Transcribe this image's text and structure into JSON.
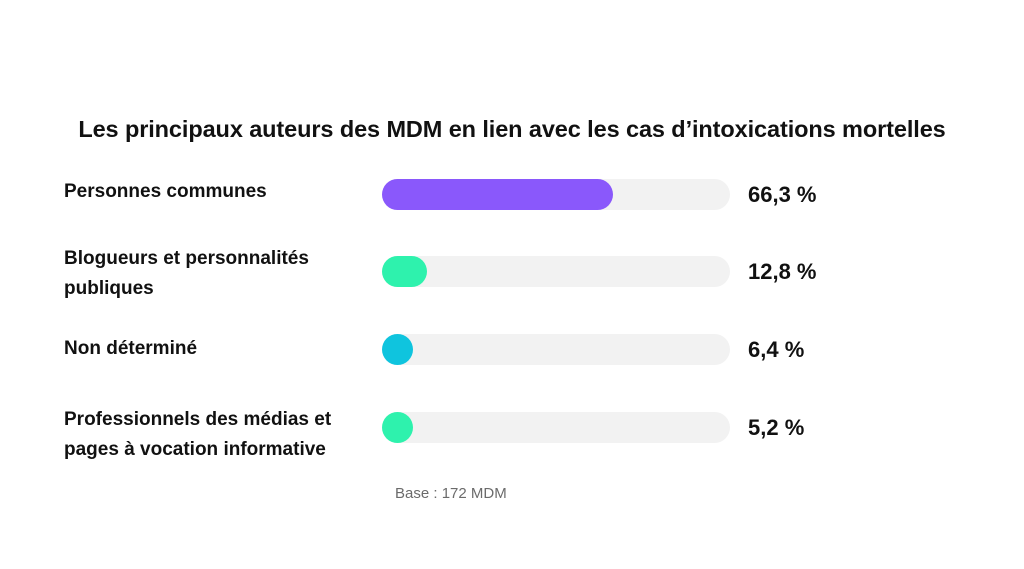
{
  "chart_data": {
    "type": "bar",
    "orientation": "horizontal",
    "title": "Les principaux auteurs des MDM en lien avec les cas d’intoxications mortelles",
    "xlim": [
      0,
      100
    ],
    "categories": [
      "Personnes communes",
      "Blogueurs et personnalités publiques",
      "Non déterminé",
      "Professionnels des médias et pages à vocation informative"
    ],
    "values": [
      66.3,
      12.8,
      6.4,
      5.2
    ],
    "value_labels": [
      "66,3 %",
      "12,8 %",
      "6,4 %",
      "5,2 %"
    ],
    "colors": [
      "#8a58fb",
      "#2ef2ad",
      "#0fc4de",
      "#2ef2ad"
    ],
    "track_color": "#f2f2f2",
    "note": "Base : 172 MDM",
    "grid": false,
    "legend": "none"
  }
}
